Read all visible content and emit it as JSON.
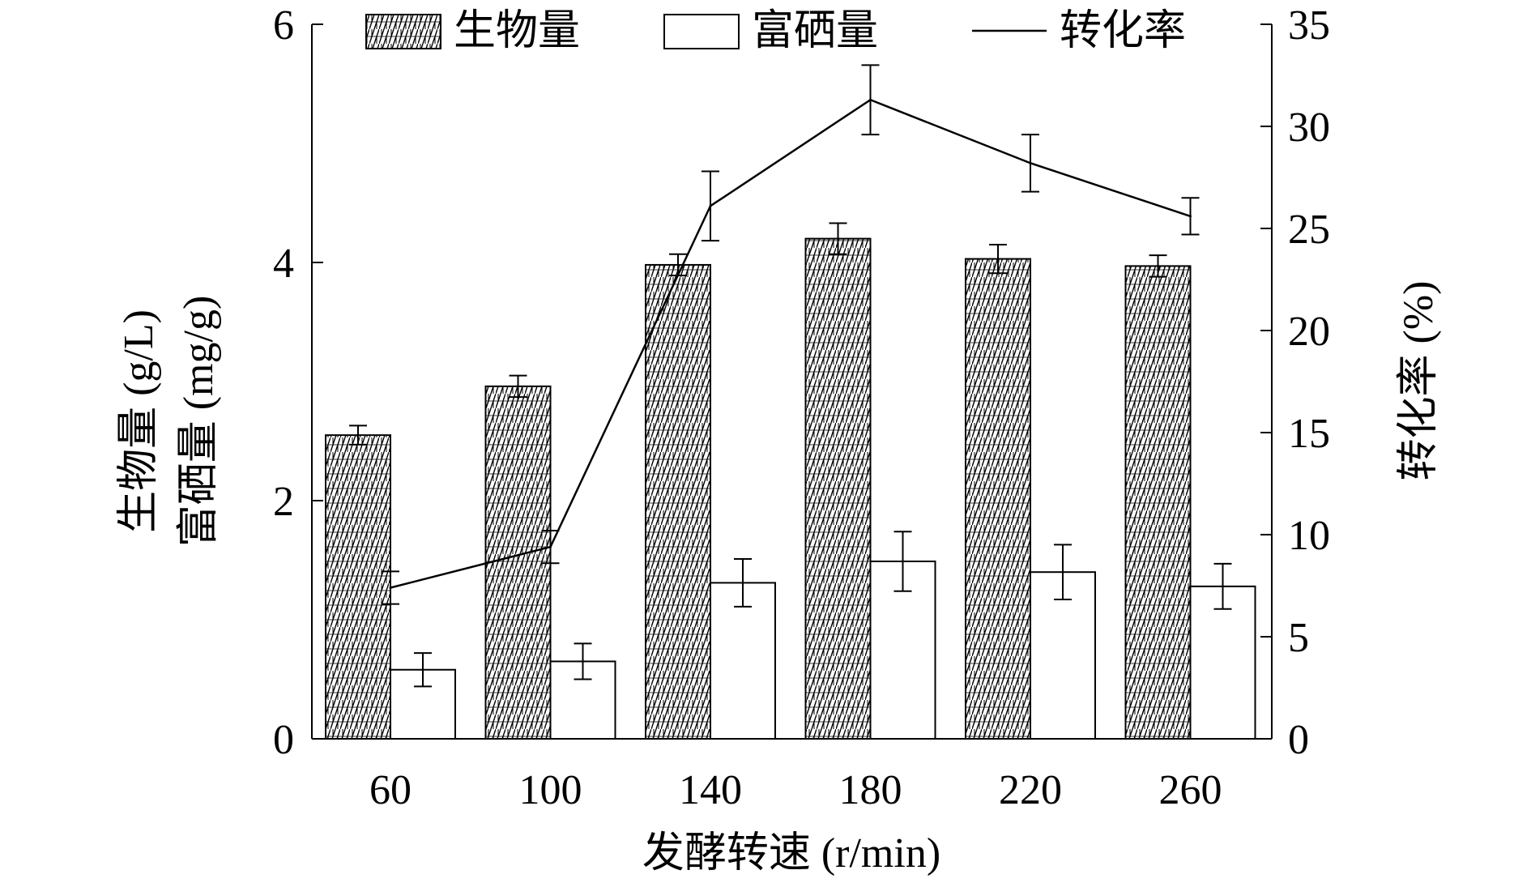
{
  "chart_data": {
    "type": "bar",
    "xlabel": "发酵转速 (r/min)",
    "ylabel_left_line1": "生物量 (g/L)",
    "ylabel_left_line2": "富硒量 (mg/g)",
    "ylabel_right": "转化率 (%)",
    "categories": [
      "60",
      "100",
      "140",
      "180",
      "220",
      "260"
    ],
    "ylim_left": [
      0,
      6
    ],
    "yticks_left": [
      "0",
      "2",
      "4",
      "6"
    ],
    "ylim_right": [
      0,
      35
    ],
    "yticks_right": [
      "0",
      "5",
      "10",
      "15",
      "20",
      "25",
      "30",
      "35"
    ],
    "legend_position": "top",
    "series": [
      {
        "name": "生物量",
        "kind": "bar",
        "axis": "left",
        "style": "hatched",
        "values": [
          2.55,
          2.96,
          3.98,
          4.2,
          4.03,
          3.97
        ],
        "errors": [
          0.08,
          0.09,
          0.09,
          0.13,
          0.12,
          0.09
        ]
      },
      {
        "name": "富硒量",
        "kind": "bar",
        "axis": "left",
        "style": "open",
        "values": [
          0.58,
          0.65,
          1.31,
          1.49,
          1.4,
          1.28
        ],
        "errors": [
          0.14,
          0.15,
          0.2,
          0.25,
          0.23,
          0.19
        ]
      },
      {
        "name": "转化率",
        "kind": "line",
        "axis": "right",
        "values": [
          7.4,
          9.4,
          26.1,
          31.3,
          28.2,
          25.6
        ],
        "errors": [
          0.8,
          0.8,
          1.7,
          1.7,
          1.4,
          0.9
        ]
      }
    ]
  }
}
